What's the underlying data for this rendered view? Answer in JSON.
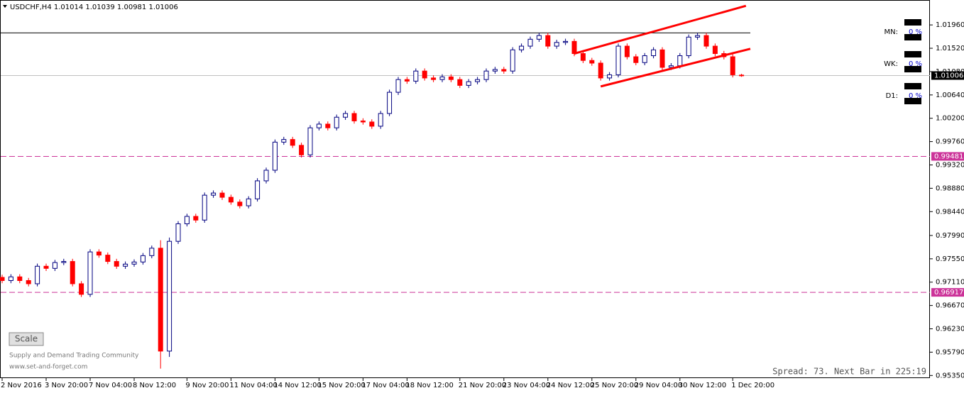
{
  "chart_data": {
    "type": "candlestick",
    "title": "USDCHF,H4  1.01014 1.01039 1.00981 1.01006",
    "categories": [
      "2 Nov 2016",
      null,
      null,
      null,
      null,
      "3 Nov 20:00",
      null,
      null,
      null,
      null,
      "7 Nov 04:00",
      null,
      null,
      null,
      null,
      "8 Nov 12:00",
      null,
      null,
      null,
      null,
      null,
      "9 Nov 20:00",
      null,
      null,
      null,
      null,
      "11 Nov 04:00",
      null,
      null,
      null,
      null,
      "14 Nov 12:00",
      null,
      null,
      null,
      null,
      "15 Nov 20:00",
      null,
      null,
      null,
      null,
      "17 Nov 04:00",
      null,
      null,
      null,
      null,
      "18 Nov 12:00",
      null,
      null,
      null,
      null,
      null,
      "21 Nov 20:00",
      null,
      null,
      null,
      null,
      "23 Nov 04:00",
      null,
      null,
      null,
      null,
      "24 Nov 12:00",
      null,
      null,
      null,
      null,
      "25 Nov 20:00",
      null,
      null,
      null,
      null,
      "29 Nov 04:00",
      null,
      null,
      null,
      null,
      "30 Nov 12:00",
      null,
      null,
      null,
      null,
      null,
      "1 Dec 20:00",
      null
    ],
    "open": [
      0.972,
      0.9714,
      0.9721,
      0.9714,
      0.9708,
      0.9741,
      0.9737,
      0.9748,
      0.975,
      0.9708,
      0.9688,
      0.9768,
      0.9762,
      0.975,
      0.9741,
      0.9745,
      0.9749,
      0.9761,
      0.9775,
      0.9581,
      0.9788,
      0.9821,
      0.9835,
      0.9828,
      0.9875,
      0.9879,
      0.9871,
      0.9862,
      0.9855,
      0.9868,
      0.9902,
      0.9922,
      0.9975,
      0.998,
      0.9969,
      0.9951,
      1.0002,
      1.0009,
      1.0002,
      1.0022,
      1.0029,
      1.0015,
      1.0013,
      1.0005,
      1.0029,
      1.0069,
      1.0093,
      1.009,
      1.0109,
      1.0096,
      1.0093,
      1.0098,
      1.0093,
      1.0082,
      1.0089,
      1.0093,
      1.0109,
      1.0112,
      1.0109,
      1.0149,
      1.0156,
      1.0169,
      1.0176,
      1.0156,
      1.0163,
      1.0165,
      1.0142,
      1.0129,
      1.0124,
      1.0096,
      1.0102,
      1.0156,
      1.0136,
      1.0125,
      1.0138,
      1.0149,
      1.0116,
      1.0119,
      1.0138,
      1.0173,
      1.0176,
      1.0156,
      1.0142,
      1.0136,
      1.01014
    ],
    "high": [
      0.9725,
      0.9726,
      0.9726,
      0.9719,
      0.9746,
      0.9746,
      0.9753,
      0.9755,
      0.9755,
      0.9713,
      0.9773,
      0.9773,
      0.9767,
      0.9755,
      0.975,
      0.9754,
      0.9766,
      0.978,
      0.979,
      0.9795,
      0.9826,
      0.984,
      0.984,
      0.988,
      0.9884,
      0.9884,
      0.9876,
      0.9867,
      0.9873,
      0.9907,
      0.9927,
      0.998,
      0.9985,
      0.9985,
      0.9974,
      1.0007,
      1.0014,
      1.0014,
      1.0027,
      1.0034,
      1.0034,
      1.002,
      1.0018,
      1.0034,
      1.0074,
      1.0098,
      1.0098,
      1.0114,
      1.0114,
      1.0101,
      1.0103,
      1.0103,
      1.0098,
      1.0094,
      1.0098,
      1.0114,
      1.0117,
      1.0117,
      1.0154,
      1.0161,
      1.0174,
      1.0181,
      1.0181,
      1.0168,
      1.017,
      1.017,
      1.0147,
      1.0134,
      1.0129,
      1.0107,
      1.0161,
      1.0161,
      1.0141,
      1.0143,
      1.0154,
      1.0154,
      1.0124,
      1.0143,
      1.0178,
      1.0181,
      1.0181,
      1.0161,
      1.0147,
      1.0141,
      1.01039
    ],
    "low": [
      0.9709,
      0.9709,
      0.9709,
      0.9703,
      0.9703,
      0.9732,
      0.9732,
      0.9743,
      0.9703,
      0.9683,
      0.9683,
      0.9757,
      0.9745,
      0.9736,
      0.9736,
      0.974,
      0.9744,
      0.9756,
      0.9548,
      0.957,
      0.9783,
      0.9816,
      0.9823,
      0.9823,
      0.987,
      0.9866,
      0.9857,
      0.985,
      0.985,
      0.9863,
      0.9897,
      0.9917,
      0.997,
      0.9964,
      0.9946,
      0.9946,
      0.9997,
      0.9997,
      0.9997,
      1.0017,
      1.001,
      1.0008,
      1.0,
      1.0,
      1.0024,
      1.0064,
      1.0085,
      1.0085,
      1.0091,
      1.0088,
      1.0088,
      1.0088,
      1.0077,
      1.0077,
      1.0084,
      1.0088,
      1.0104,
      1.0104,
      1.0104,
      1.0144,
      1.0151,
      1.0164,
      1.0151,
      1.0151,
      1.0158,
      1.0137,
      1.0124,
      1.0119,
      1.0091,
      1.0091,
      1.0097,
      1.0131,
      1.012,
      1.012,
      1.0133,
      1.0111,
      1.0111,
      1.0114,
      1.0133,
      1.0168,
      1.0151,
      1.0137,
      1.0131,
      1.0097,
      1.00981
    ],
    "close": [
      0.9714,
      0.9721,
      0.9714,
      0.9708,
      0.9741,
      0.9737,
      0.9748,
      0.975,
      0.9708,
      0.9688,
      0.9768,
      0.9762,
      0.975,
      0.9741,
      0.9745,
      0.9749,
      0.9761,
      0.9775,
      0.9581,
      0.9788,
      0.9821,
      0.9835,
      0.9828,
      0.9875,
      0.9879,
      0.9871,
      0.9862,
      0.9855,
      0.9868,
      0.9902,
      0.9922,
      0.9975,
      0.998,
      0.9969,
      0.9951,
      1.0002,
      1.0009,
      1.0002,
      1.0022,
      1.0029,
      1.0015,
      1.0013,
      1.0005,
      1.0029,
      1.0069,
      1.0093,
      1.009,
      1.0109,
      1.0096,
      1.0093,
      1.0098,
      1.0093,
      1.0082,
      1.0089,
      1.0093,
      1.0109,
      1.0112,
      1.0109,
      1.0149,
      1.0156,
      1.0169,
      1.0176,
      1.0156,
      1.0163,
      1.0165,
      1.0142,
      1.0129,
      1.0124,
      1.0096,
      1.0102,
      1.0156,
      1.0136,
      1.0125,
      1.0138,
      1.0149,
      1.0116,
      1.0119,
      1.0138,
      1.0173,
      1.0176,
      1.0156,
      1.0142,
      1.0136,
      1.0102,
      1.01006
    ],
    "up_color": "#ffffff",
    "up_line_color": "#000080",
    "down_color": "#ff0000",
    "ylim": [
      0.951,
      1.0243
    ],
    "yticks": [
      {
        "value": 1.0196,
        "label": "1.01960"
      },
      {
        "value": 1.0152,
        "label": "1.01520"
      },
      {
        "value": 1.0108,
        "label": "1.01080"
      },
      {
        "value": 1.0064,
        "label": "1.00640"
      },
      {
        "value": 1.002,
        "label": "1.00200"
      },
      {
        "value": 0.9976,
        "label": "0.99760"
      },
      {
        "value": 0.9932,
        "label": "0.99320"
      },
      {
        "value": 0.9888,
        "label": "0.98880"
      },
      {
        "value": 0.9844,
        "label": "0.98440"
      },
      {
        "value": 0.9799,
        "label": "0.97990"
      },
      {
        "value": 0.9755,
        "label": "0.97550"
      },
      {
        "value": 0.9711,
        "label": "0.97110"
      },
      {
        "value": 0.9667,
        "label": "0.96670"
      },
      {
        "value": 0.9623,
        "label": "0.96230"
      },
      {
        "value": 0.9579,
        "label": "0.95790"
      },
      {
        "value": 0.9535,
        "label": "0.95350"
      }
    ],
    "current_price": 1.01006,
    "levels": [
      {
        "value": 0.99481,
        "color": "#cc3399"
      },
      {
        "value": 0.96917,
        "color": "#cc3399"
      }
    ],
    "resistance": {
      "value": 1.0181,
      "end": 85
    },
    "trendlines": [
      {
        "start": [
          65,
          1.0142
        ],
        "end": [
          84.5,
          1.0232
        ],
        "color": "#ff0000"
      },
      {
        "start": [
          68,
          1.008
        ],
        "end": [
          85,
          1.0151
        ],
        "color": "#ff0000"
      }
    ]
  },
  "widgets": [
    {
      "label": "MN:",
      "value": "0 %"
    },
    {
      "label": "WK:",
      "value": "0 %"
    },
    {
      "label": "D1:",
      "value": "0 %"
    }
  ],
  "scale_button": "Scale",
  "brand": [
    "Supply and Demand Trading Community",
    "www.set-and-forget.com"
  ],
  "status": "Spread: 73. Next Bar in 225:19"
}
